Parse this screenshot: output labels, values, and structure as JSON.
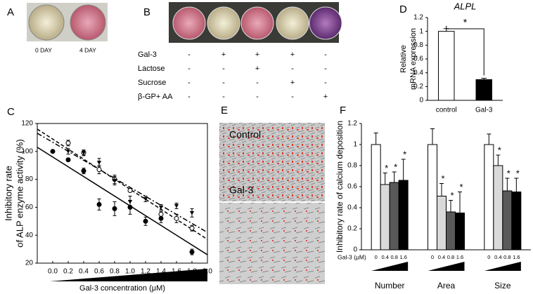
{
  "chart_data": [
    {
      "panel": "D",
      "type": "bar",
      "title": "ALPL",
      "ylabel": [
        "Relative",
        "mRNA expression"
      ],
      "categories": [
        "control",
        "Gal-3"
      ],
      "values": [
        1.0,
        0.3
      ],
      "errors": [
        0.04,
        0.02
      ],
      "colors": [
        "#ffffff",
        "#000000"
      ],
      "ylim": [
        0,
        1.2
      ],
      "yticks": [
        0,
        0.2,
        0.4,
        0.6,
        0.8,
        1,
        1.2
      ],
      "annotation": "*"
    },
    {
      "panel": "C",
      "type": "scatter",
      "xlabel": "Gal-3 concentration (μM)",
      "ylabel": [
        "Inhibitory rate",
        "of ALP enzyme activity   (%)"
      ],
      "xlim": [
        -0.2,
        2.0
      ],
      "xticks": [
        {
          "value": 0,
          "label": "0.0"
        },
        0.2,
        0.4,
        0.6,
        0.8,
        {
          "value": 1,
          "label": "1.0"
        },
        1.2,
        1.4,
        1.6,
        1.8,
        {
          "value": 2,
          "label": "2.0"
        }
      ],
      "ylim": [
        20,
        120
      ],
      "yticks": [
        20,
        40,
        60,
        80,
        100,
        120
      ],
      "series": [
        {
          "marker": "circle",
          "color": "#000000",
          "x": [
            0,
            0.2,
            0.4,
            0.6,
            0.8,
            1.0,
            1.2,
            1.4,
            1.8
          ],
          "values": [
            100,
            94,
            86,
            62,
            59,
            60,
            50,
            52,
            28
          ],
          "errors": [
            1,
            1,
            2,
            4,
            5,
            5,
            3,
            3,
            2
          ]
        },
        {
          "marker": "open-circle",
          "color": "#000000",
          "x": [
            0.2,
            0.4,
            0.6,
            0.8,
            1.0,
            1.4,
            1.6,
            1.8
          ],
          "values": [
            106,
            99,
            87,
            80,
            72,
            55,
            52,
            45
          ],
          "errors": [
            2,
            2,
            3,
            3,
            1,
            2,
            3,
            2
          ]
        },
        {
          "marker": "triangle",
          "color": "#000000",
          "x": [
            0.2,
            0.4,
            0.6,
            0.8,
            1.0,
            1.2,
            1.4,
            1.6,
            1.8
          ],
          "values": [
            100,
            99,
            92,
            79,
            64,
            66,
            60,
            61,
            56
          ],
          "errors": [
            2,
            2,
            3,
            3,
            4,
            2,
            2,
            2,
            3
          ]
        }
      ],
      "fit_lines": [
        {
          "style": "solid",
          "x": [
            -0.2,
            2.0
          ],
          "values": [
            103,
            26
          ]
        },
        {
          "style": "dashed",
          "x": [
            -0.2,
            2.0
          ],
          "values": [
            116,
            37
          ]
        },
        {
          "style": "dashdot",
          "x": [
            -0.2,
            2.0
          ],
          "values": [
            113,
            42
          ]
        }
      ]
    },
    {
      "panel": "F",
      "type": "bar",
      "ylabel": "Inhibitory  rate of calcium deposition",
      "xlabel": "Gal-3  (μM)",
      "categories": [
        "Number",
        "Area",
        "Size"
      ],
      "ylim": [
        0,
        1.2
      ],
      "yticks": [
        0,
        0.2,
        0.4,
        0.6,
        0.8,
        1,
        1.2
      ],
      "annotation": "*",
      "series": [
        {
          "name": "0",
          "color": "#ffffff",
          "marked": false,
          "values": [
            1.0,
            1.0,
            1.0
          ],
          "errors": [
            0.11,
            0.15,
            0.1
          ]
        },
        {
          "name": "0.4",
          "color": "#d9d9d9",
          "marked": true,
          "values": [
            0.62,
            0.51,
            0.8
          ],
          "errors": [
            0.11,
            0.12,
            0.1
          ]
        },
        {
          "name": "0.8",
          "color": "#595959",
          "marked": true,
          "values": [
            0.64,
            0.36,
            0.56
          ],
          "errors": [
            0.1,
            0.11,
            0.12
          ]
        },
        {
          "name": "1.6",
          "color": "#000000",
          "marked": true,
          "values": [
            0.66,
            0.35,
            0.55
          ],
          "errors": [
            0.2,
            0.2,
            0.13
          ]
        }
      ]
    }
  ],
  "photos": {
    "a": {
      "panel": "A",
      "captions": [
        "0 DAY",
        "4 DAY"
      ]
    },
    "b": {
      "panel": "B",
      "rows": [
        {
          "name": "Gal-3",
          "marks": [
            "-",
            "+",
            "+",
            "+",
            "-"
          ]
        },
        {
          "name": "Lactose",
          "marks": [
            "-",
            "-",
            "+",
            "-",
            "-"
          ]
        },
        {
          "name": "Sucrose",
          "marks": [
            "-",
            "-",
            "-",
            "+",
            "-"
          ]
        },
        {
          "name": "β-GP+ AA",
          "marks": [
            "-",
            "-",
            "-",
            "-",
            "+"
          ]
        }
      ]
    },
    "e": {
      "panel": "E",
      "captions": [
        "Control",
        "Gal-3"
      ]
    }
  }
}
